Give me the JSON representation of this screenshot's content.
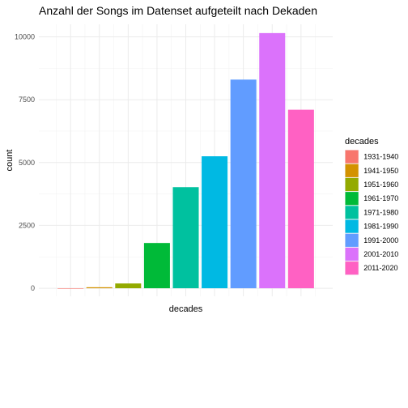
{
  "chart_data": {
    "type": "bar",
    "title": "Anzahl der Songs im Datenset aufgeteilt nach Dekaden",
    "xlabel": "decades",
    "ylabel": "count",
    "categories": [
      "1931-1940",
      "1941-1950",
      "1951-1960",
      "1961-1970",
      "1971-1980",
      "1981-1990",
      "1991-2000",
      "2001-2010",
      "2011-2020"
    ],
    "values": [
      2,
      40,
      190,
      1800,
      4020,
      5250,
      8300,
      10150,
      7100
    ],
    "colors": [
      "#F8766D",
      "#D39200",
      "#93AA00",
      "#00BA38",
      "#00C19F",
      "#00B9E3",
      "#619CFF",
      "#DB72FB",
      "#FF61C3"
    ],
    "ylim": [
      -320,
      10500
    ],
    "yticks": [
      0,
      2500,
      5000,
      7500,
      10000
    ],
    "grid": true,
    "legend": {
      "title": "decades",
      "position": "right"
    }
  }
}
